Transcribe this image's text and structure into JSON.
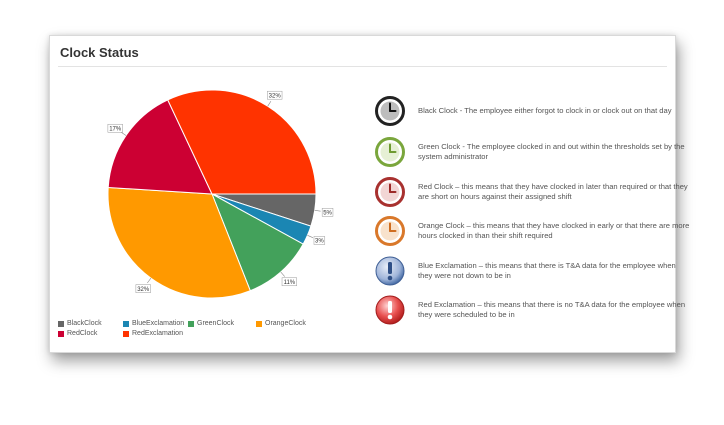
{
  "panel": {
    "title": "Clock Status"
  },
  "chart_data": {
    "type": "pie",
    "title": "Clock Status",
    "slices": [
      {
        "name": "BlackClock",
        "value": 5,
        "label": "5%",
        "color": "#666666"
      },
      {
        "name": "BlueExclamation",
        "value": 3,
        "label": "3%",
        "color": "#1b86b3"
      },
      {
        "name": "GreenClock",
        "value": 11,
        "label": "11%",
        "color": "#43a15b"
      },
      {
        "name": "OrangeClock",
        "value": 32,
        "label": "32%",
        "color": "#ff9900"
      },
      {
        "name": "RedClock",
        "value": 17,
        "label": "17%",
        "color": "#cc0033"
      },
      {
        "name": "RedExclamation",
        "value": 32,
        "label": "32%",
        "color": "#ff3300"
      }
    ],
    "legend": [
      "BlackClock",
      "BlueExclamation",
      "GreenClock",
      "OrangeClock",
      "RedClock",
      "RedExclamation"
    ],
    "legend_position": "bottom-left"
  },
  "status_legend": [
    {
      "icon": "black-clock-icon",
      "color": "#222222",
      "text": "Black Clock - The employee either forgot to clock in or clock out on that day"
    },
    {
      "icon": "green-clock-icon",
      "color": "#7aa63c",
      "text": "Green Clock - The employee clocked in and out within the thresholds set by the system administrator"
    },
    {
      "icon": "red-clock-icon",
      "color": "#a8312f",
      "text": "Red Clock – this means that they have clocked in later than required or that they are short on hours against their assigned shift"
    },
    {
      "icon": "orange-clock-icon",
      "color": "#d9782a",
      "text": "Orange Clock – this means that they have clocked in early or that there are more hours clocked in than their shift required"
    },
    {
      "icon": "blue-exclamation-icon",
      "color": "#4a6fa8",
      "text": "Blue Exclamation – this means that there is T&A data for the employee when they were not down to be in"
    },
    {
      "icon": "red-exclamation-icon",
      "color": "#d9363a",
      "text": "Red Exclamation – this means that there is no T&A data for the employee when they were scheduled to be in"
    }
  ]
}
